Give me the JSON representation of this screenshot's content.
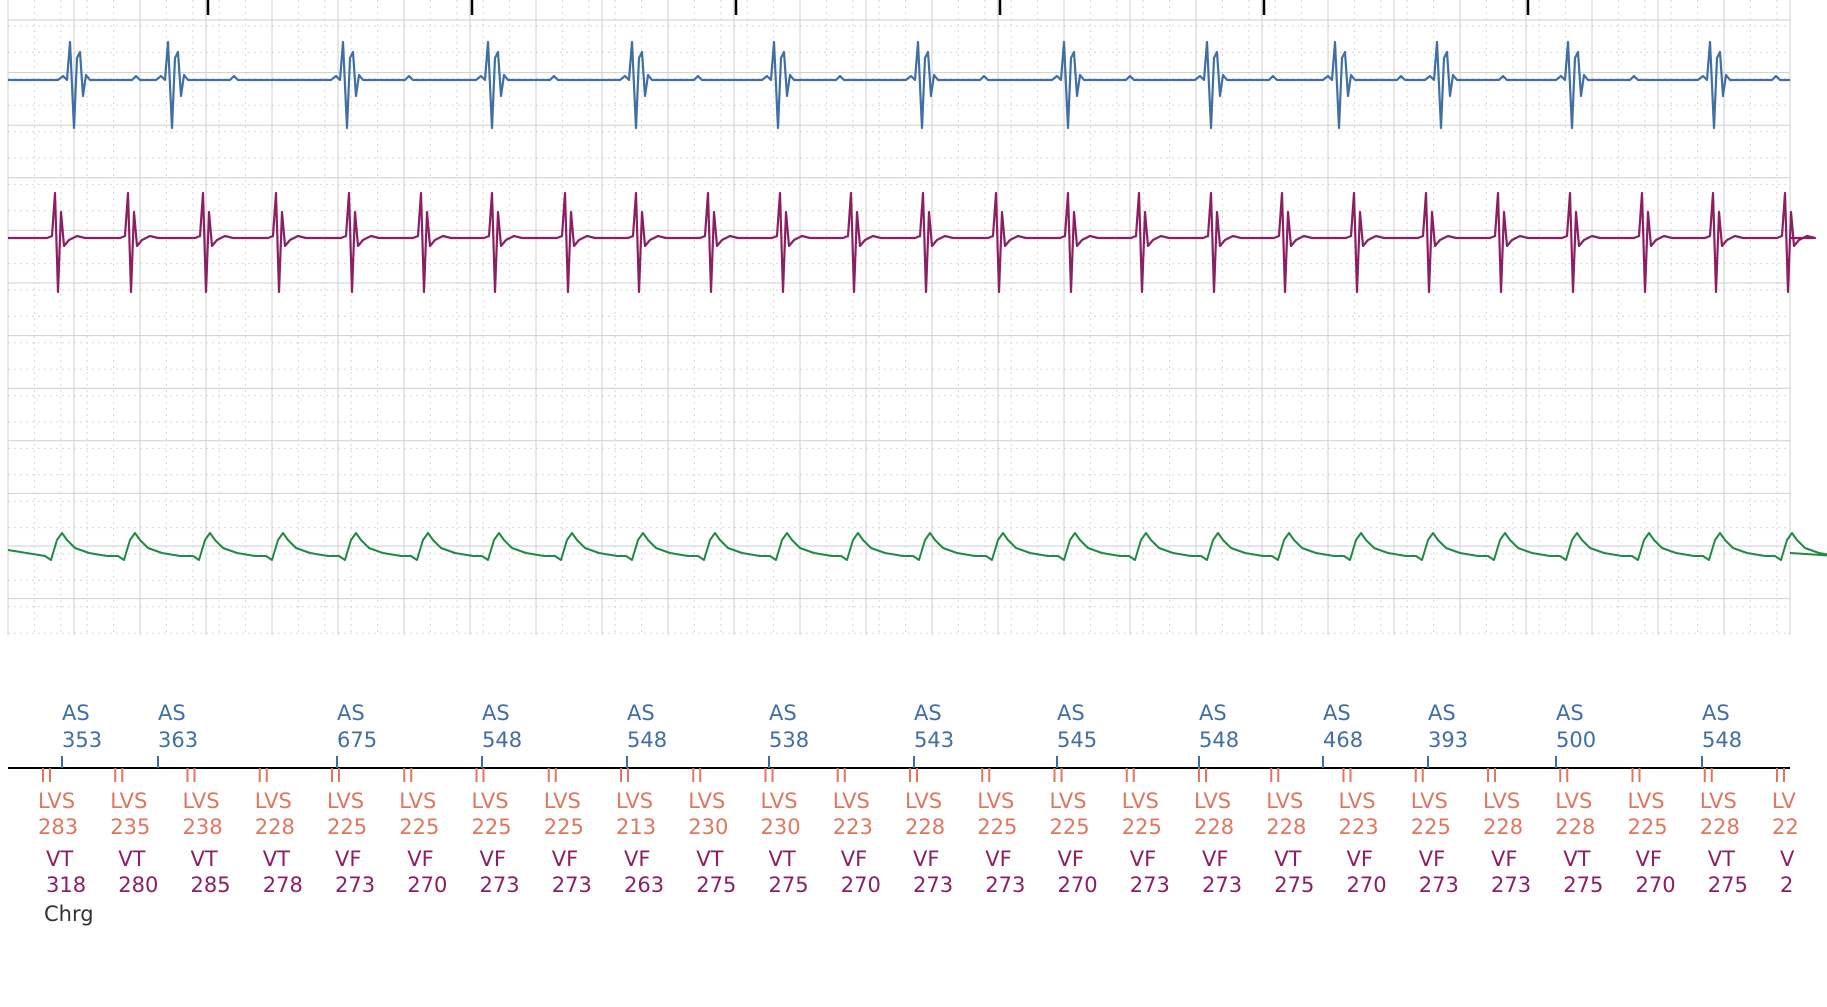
{
  "colors": {
    "atrial": "#3f6fa3",
    "ventricular": "#8c1f63",
    "shock": "#1f8a45",
    "lvs": "#e0765e",
    "zone": "#8c1f63",
    "grid_major": "#cfcfcf",
    "grid_minor": "#d9d9d9",
    "marker_line": "#000000",
    "charge": "#333333"
  },
  "chart_data": {
    "type": "line",
    "title": "",
    "xlabel": "",
    "ylabel": "",
    "grid": true,
    "channels": [
      "atrial-egm",
      "ventricular-egm",
      "shock-egm"
    ],
    "time_ticks_at_top": 6,
    "atrial_markers": [
      {
        "label": "AS",
        "interval": "353"
      },
      {
        "label": "AS",
        "interval": "363"
      },
      {
        "label": "AS",
        "interval": "675"
      },
      {
        "label": "AS",
        "interval": "548"
      },
      {
        "label": "AS",
        "interval": "548"
      },
      {
        "label": "AS",
        "interval": "538"
      },
      {
        "label": "AS",
        "interval": "543"
      },
      {
        "label": "AS",
        "interval": "545"
      },
      {
        "label": "AS",
        "interval": "548"
      },
      {
        "label": "AS",
        "interval": "468"
      },
      {
        "label": "AS",
        "interval": "393"
      },
      {
        "label": "AS",
        "interval": "500"
      },
      {
        "label": "AS",
        "interval": "548"
      }
    ],
    "lv_markers": [
      {
        "label": "LVS",
        "interval": "283"
      },
      {
        "label": "LVS",
        "interval": "235"
      },
      {
        "label": "LVS",
        "interval": "238"
      },
      {
        "label": "LVS",
        "interval": "228"
      },
      {
        "label": "LVS",
        "interval": "225"
      },
      {
        "label": "LVS",
        "interval": "225"
      },
      {
        "label": "LVS",
        "interval": "225"
      },
      {
        "label": "LVS",
        "interval": "225"
      },
      {
        "label": "LVS",
        "interval": "213"
      },
      {
        "label": "LVS",
        "interval": "230"
      },
      {
        "label": "LVS",
        "interval": "230"
      },
      {
        "label": "LVS",
        "interval": "223"
      },
      {
        "label": "LVS",
        "interval": "228"
      },
      {
        "label": "LVS",
        "interval": "225"
      },
      {
        "label": "LVS",
        "interval": "225"
      },
      {
        "label": "LVS",
        "interval": "225"
      },
      {
        "label": "LVS",
        "interval": "228"
      },
      {
        "label": "LVS",
        "interval": "228"
      },
      {
        "label": "LVS",
        "interval": "223"
      },
      {
        "label": "LVS",
        "interval": "225"
      },
      {
        "label": "LVS",
        "interval": "228"
      },
      {
        "label": "LVS",
        "interval": "228"
      },
      {
        "label": "LVS",
        "interval": "225"
      },
      {
        "label": "LVS",
        "interval": "228"
      },
      {
        "label": "LV",
        "interval": "22"
      }
    ],
    "rv_markers": [
      {
        "label": "VT",
        "interval": "318"
      },
      {
        "label": "VT",
        "interval": "280"
      },
      {
        "label": "VT",
        "interval": "285"
      },
      {
        "label": "VT",
        "interval": "278"
      },
      {
        "label": "VF",
        "interval": "273"
      },
      {
        "label": "VF",
        "interval": "270"
      },
      {
        "label": "VF",
        "interval": "273"
      },
      {
        "label": "VF",
        "interval": "273"
      },
      {
        "label": "VF",
        "interval": "263"
      },
      {
        "label": "VT",
        "interval": "275"
      },
      {
        "label": "VT",
        "interval": "275"
      },
      {
        "label": "VF",
        "interval": "270"
      },
      {
        "label": "VF",
        "interval": "273"
      },
      {
        "label": "VF",
        "interval": "273"
      },
      {
        "label": "VF",
        "interval": "270"
      },
      {
        "label": "VF",
        "interval": "273"
      },
      {
        "label": "VF",
        "interval": "273"
      },
      {
        "label": "VT",
        "interval": "275"
      },
      {
        "label": "VF",
        "interval": "270"
      },
      {
        "label": "VF",
        "interval": "273"
      },
      {
        "label": "VF",
        "interval": "273"
      },
      {
        "label": "VT",
        "interval": "275"
      },
      {
        "label": "VF",
        "interval": "270"
      },
      {
        "label": "VT",
        "interval": "275"
      },
      {
        "label": "V",
        "interval": "2"
      }
    ],
    "event_label": "Chrg"
  }
}
